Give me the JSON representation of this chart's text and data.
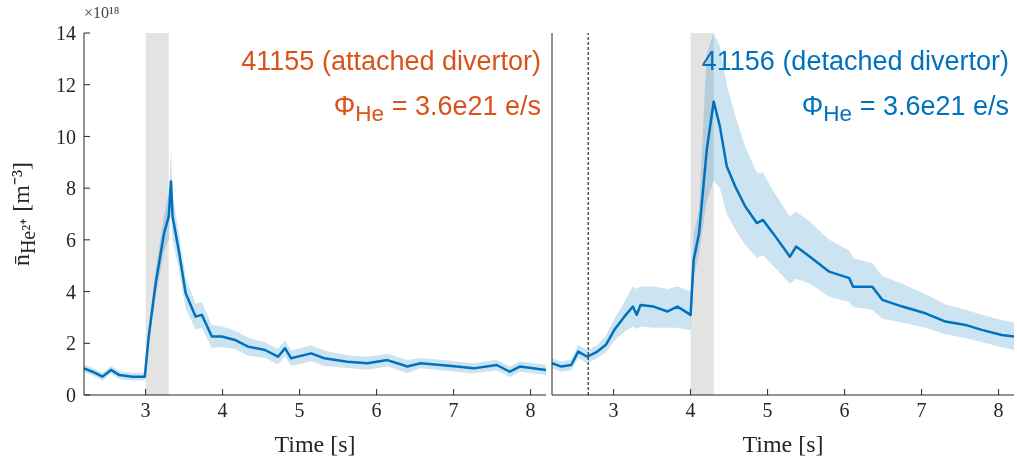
{
  "chart_data": [
    {
      "type": "line",
      "xlabel": "Time [s]",
      "ylabel": "n̄$_{He²⁺}$ [m⁻³]",
      "annotations": [
        "×10¹⁸",
        "41155 (attached divertor)",
        "Φ$_{He}$ = 3.6e21 e/s"
      ],
      "xlim": [
        2.2,
        8.2
      ],
      "xticks": [
        3,
        4,
        5,
        6,
        7,
        8
      ],
      "ylim": [
        0,
        14
      ],
      "yticks": [
        0,
        2,
        4,
        6,
        8,
        10,
        12,
        14
      ],
      "grid": false,
      "legend": false,
      "bands": [
        {
          "axis": "x",
          "from": 3,
          "to": 3.3,
          "color": "#e3e3e3"
        }
      ],
      "series": [
        {
          "color": "#0072bd",
          "x": [
            2.2,
            2.31,
            2.44,
            2.55,
            2.66,
            2.83,
            2.99,
            3.04,
            3.13,
            3.24,
            3.3,
            3.33,
            3.35,
            3.43,
            3.52,
            3.65,
            3.73,
            3.86,
            3.99,
            4.16,
            4.33,
            4.55,
            4.72,
            4.81,
            4.89,
            5.15,
            5.32,
            5.62,
            5.88,
            6.14,
            6.4,
            6.57,
            6.83,
            7.04,
            7.26,
            7.56,
            7.73,
            7.86,
            8.2
          ],
          "values": [
            1.03,
            0.9,
            0.71,
            0.97,
            0.77,
            0.71,
            0.71,
            2.26,
            4.3,
            6.26,
            6.9,
            8.26,
            6.9,
            5.6,
            3.94,
            3.03,
            3.1,
            2.26,
            2.26,
            2.13,
            1.87,
            1.74,
            1.48,
            1.81,
            1.42,
            1.61,
            1.42,
            1.29,
            1.23,
            1.35,
            1.1,
            1.23,
            1.16,
            1.1,
            1.03,
            1.16,
            0.9,
            1.1,
            0.97
          ],
          "lower": [
            0.88,
            0.75,
            0.56,
            0.82,
            0.62,
            0.56,
            0.56,
            1.96,
            3.8,
            5.56,
            6,
            7.06,
            6,
            4.9,
            3.34,
            2.53,
            2.6,
            1.81,
            1.86,
            1.78,
            1.52,
            1.44,
            1.18,
            1.51,
            1.12,
            1.31,
            1.12,
            1.04,
            0.98,
            1.1,
            0.85,
            1.03,
            0.96,
            0.9,
            0.83,
            0.96,
            0.7,
            0.9,
            0.77
          ],
          "upper": [
            1.18,
            1.05,
            0.86,
            1.12,
            0.92,
            0.86,
            0.86,
            2.56,
            4.8,
            6.96,
            7.8,
            9.46,
            7.8,
            6.3,
            4.54,
            3.53,
            3.6,
            2.71,
            2.66,
            2.48,
            2.22,
            2.04,
            1.78,
            2.11,
            1.72,
            1.91,
            1.72,
            1.54,
            1.48,
            1.6,
            1.35,
            1.43,
            1.36,
            1.3,
            1.23,
            1.36,
            1.1,
            1.3,
            1.17
          ]
        }
      ]
    },
    {
      "type": "line",
      "xlabel": "Time [s]",
      "annotations": [
        "41156 (detached divertor)",
        "Φ$_{He}$ = 3.6e21 e/s"
      ],
      "xlim": [
        2.2,
        8.2
      ],
      "xticks": [
        3,
        4,
        5,
        6,
        7,
        8
      ],
      "ylim": [
        0,
        14
      ],
      "yticks": [
        0,
        2,
        4,
        6,
        8,
        10,
        12,
        14
      ],
      "tick_labels": "x",
      "grid": false,
      "legend": false,
      "bands": [
        {
          "axis": "x",
          "from": 4,
          "to": 4.3,
          "color": "#e3e3e3"
        }
      ],
      "ref_lines": [
        {
          "axis": "x",
          "value": 2.67,
          "color": "#000000",
          "line_style": "dashed"
        }
      ],
      "series": [
        {
          "color": "#0072bd",
          "x": [
            2.2,
            2.32,
            2.45,
            2.54,
            2.66,
            2.79,
            2.9,
            3.01,
            3.14,
            3.25,
            3.3,
            3.35,
            3.52,
            3.7,
            3.83,
            4.0,
            4.04,
            4.11,
            4.21,
            4.3,
            4.38,
            4.47,
            4.58,
            4.71,
            4.86,
            4.94,
            5.07,
            5.29,
            5.37,
            5.55,
            5.8,
            6.06,
            6.11,
            6.36,
            6.49,
            6.75,
            7.05,
            7.31,
            7.57,
            7.78,
            8.04,
            8.2
          ],
          "values": [
            1.23,
            1.1,
            1.16,
            1.68,
            1.48,
            1.68,
            1.94,
            2.52,
            3.03,
            3.42,
            3.1,
            3.48,
            3.42,
            3.23,
            3.42,
            3.1,
            5.23,
            6.26,
            9.48,
            11.35,
            10.39,
            8.84,
            8.06,
            7.29,
            6.65,
            6.77,
            6.26,
            5.35,
            5.74,
            5.35,
            4.77,
            4.52,
            4.19,
            4.19,
            3.68,
            3.42,
            3.16,
            2.84,
            2.71,
            2.52,
            2.32,
            2.26
          ],
          "lower": [
            1.03,
            0.9,
            0.96,
            1.43,
            1.23,
            1.43,
            1.64,
            2.1,
            2.45,
            2.65,
            2.55,
            2.65,
            2.6,
            2.6,
            2.6,
            2.5,
            4.5,
            5.5,
            7.5,
            8.3,
            8.0,
            7.0,
            6.4,
            5.8,
            5.3,
            5.4,
            5.0,
            4.3,
            4.5,
            4.3,
            3.8,
            3.6,
            3.4,
            3.3,
            2.95,
            2.8,
            2.6,
            2.35,
            2.2,
            2.05,
            1.85,
            1.75
          ],
          "upper": [
            1.43,
            1.3,
            1.36,
            1.93,
            1.73,
            1.93,
            2.3,
            2.95,
            3.6,
            4.2,
            4.1,
            4.2,
            4.2,
            4.1,
            4.2,
            4.0,
            6.2,
            7.2,
            13.2,
            14,
            13.5,
            12,
            10.8,
            9.6,
            8.6,
            8.6,
            7.9,
            6.9,
            7.1,
            6.7,
            6.0,
            5.6,
            5.3,
            5.1,
            4.6,
            4.3,
            3.9,
            3.5,
            3.3,
            3.1,
            2.9,
            2.8
          ]
        }
      ]
    }
  ]
}
